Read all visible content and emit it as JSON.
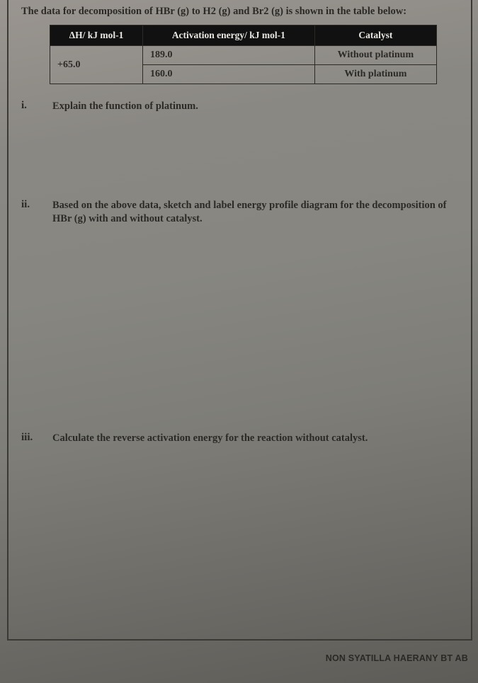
{
  "intro": "The data for decomposition of HBr (g) to H2 (g) and Br2 (g) is shown in the table below:",
  "table": {
    "headers": [
      "ΔH/ kJ mol-1",
      "Activation energy/ kJ mol-1",
      "Catalyst"
    ],
    "dH": "+65.0",
    "rows": [
      {
        "ea": "189.0",
        "cat": "Without platinum"
      },
      {
        "ea": "160.0",
        "cat": "With platinum"
      }
    ]
  },
  "questions": {
    "i": {
      "num": "i.",
      "text": "Explain the function of platinum."
    },
    "ii": {
      "num": "ii.",
      "text": "Based on the above data, sketch and label energy profile diagram for the decomposition of HBr (g) with and without catalyst."
    },
    "iii": {
      "num": "iii.",
      "text": "Calculate the reverse activation energy for the reaction without catalyst."
    }
  },
  "footer": "NON SYATILLA HAERANY BT AB"
}
